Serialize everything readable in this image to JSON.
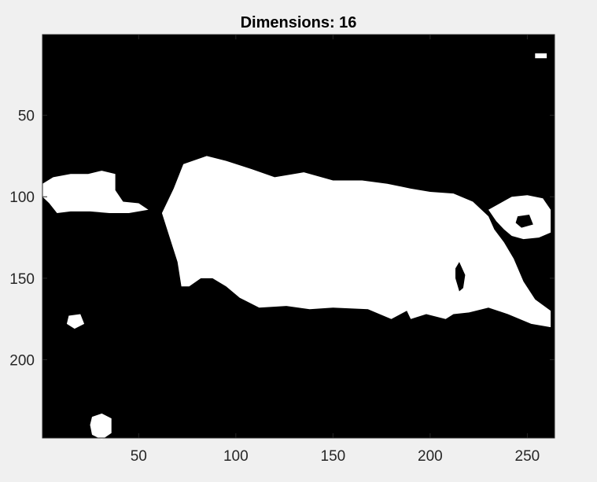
{
  "chart_data": {
    "type": "heatmap",
    "title": "Dimensions: 16",
    "xlabel": "",
    "ylabel": "",
    "xlim": [
      0.5,
      264
    ],
    "ylim": [
      0.5,
      248
    ],
    "y_direction": "reverse",
    "colormap": [
      "#000000",
      "#ffffff"
    ],
    "xticks": [
      50,
      100,
      150,
      200,
      250
    ],
    "yticks": [
      50,
      100,
      150,
      200
    ],
    "xtick_labels": [
      "50",
      "100",
      "150",
      "200",
      "250"
    ],
    "ytick_labels": [
      "50",
      "100",
      "150",
      "200"
    ],
    "white_regions": [
      {
        "name": "main-body",
        "points": [
          [
            73,
            80
          ],
          [
            85,
            75
          ],
          [
            95,
            78
          ],
          [
            108,
            83
          ],
          [
            120,
            88
          ],
          [
            135,
            85
          ],
          [
            150,
            90
          ],
          [
            165,
            90
          ],
          [
            178,
            92
          ],
          [
            190,
            95
          ],
          [
            200,
            97
          ],
          [
            212,
            98
          ],
          [
            222,
            103
          ],
          [
            230,
            112
          ],
          [
            233,
            120
          ],
          [
            238,
            128
          ],
          [
            243,
            138
          ],
          [
            248,
            152
          ],
          [
            254,
            163
          ],
          [
            262,
            170
          ],
          [
            262,
            180
          ],
          [
            252,
            178
          ],
          [
            240,
            172
          ],
          [
            230,
            168
          ],
          [
            220,
            171
          ],
          [
            212,
            172
          ],
          [
            208,
            175
          ],
          [
            198,
            172
          ],
          [
            190,
            175
          ],
          [
            188,
            170
          ],
          [
            180,
            175
          ],
          [
            168,
            169
          ],
          [
            150,
            168
          ],
          [
            138,
            169
          ],
          [
            126,
            167
          ],
          [
            112,
            168
          ],
          [
            102,
            162
          ],
          [
            95,
            155
          ],
          [
            88,
            150
          ],
          [
            82,
            150
          ],
          [
            76,
            155
          ],
          [
            72,
            155
          ],
          [
            70,
            140
          ],
          [
            66,
            125
          ],
          [
            62,
            110
          ],
          [
            68,
            95
          ]
        ]
      },
      {
        "name": "left-blob",
        "points": [
          [
            0.5,
            92
          ],
          [
            6,
            88
          ],
          [
            15,
            86
          ],
          [
            24,
            86
          ],
          [
            31,
            84
          ],
          [
            38,
            86
          ],
          [
            38,
            96
          ],
          [
            42,
            103
          ],
          [
            50,
            104
          ],
          [
            55,
            108
          ],
          [
            45,
            110
          ],
          [
            35,
            110
          ],
          [
            25,
            109
          ],
          [
            15,
            109
          ],
          [
            8,
            110
          ],
          [
            4,
            104
          ],
          [
            0.5,
            100
          ]
        ]
      },
      {
        "name": "right-ring",
        "points": [
          [
            230,
            108
          ],
          [
            236,
            104
          ],
          [
            242,
            100
          ],
          [
            250,
            99
          ],
          [
            258,
            101
          ],
          [
            262,
            108
          ],
          [
            262,
            122
          ],
          [
            256,
            125
          ],
          [
            248,
            126
          ],
          [
            242,
            124
          ],
          [
            238,
            120
          ],
          [
            234,
            115
          ]
        ]
      },
      {
        "name": "small-blob-left",
        "points": [
          [
            14,
            173
          ],
          [
            20,
            172
          ],
          [
            22,
            178
          ],
          [
            17,
            181
          ],
          [
            13,
            178
          ]
        ]
      },
      {
        "name": "bottom-blob",
        "points": [
          [
            26,
            235
          ],
          [
            31,
            233
          ],
          [
            36,
            236
          ],
          [
            36,
            245
          ],
          [
            31,
            249
          ],
          [
            26,
            246
          ],
          [
            25,
            240
          ]
        ]
      },
      {
        "name": "top-right-dot",
        "points": [
          [
            254,
            12
          ],
          [
            260,
            12
          ],
          [
            260,
            15
          ],
          [
            254,
            15
          ]
        ]
      }
    ],
    "dark_regions": [
      {
        "name": "ring-hole",
        "points": [
          [
            245,
            112
          ],
          [
            251,
            111
          ],
          [
            253,
            117
          ],
          [
            247,
            119
          ],
          [
            244,
            116
          ]
        ]
      },
      {
        "name": "body-crack",
        "points": [
          [
            213,
            144
          ],
          [
            215,
            140
          ],
          [
            218,
            148
          ],
          [
            217,
            156
          ],
          [
            215,
            158
          ],
          [
            213,
            150
          ]
        ]
      }
    ]
  }
}
